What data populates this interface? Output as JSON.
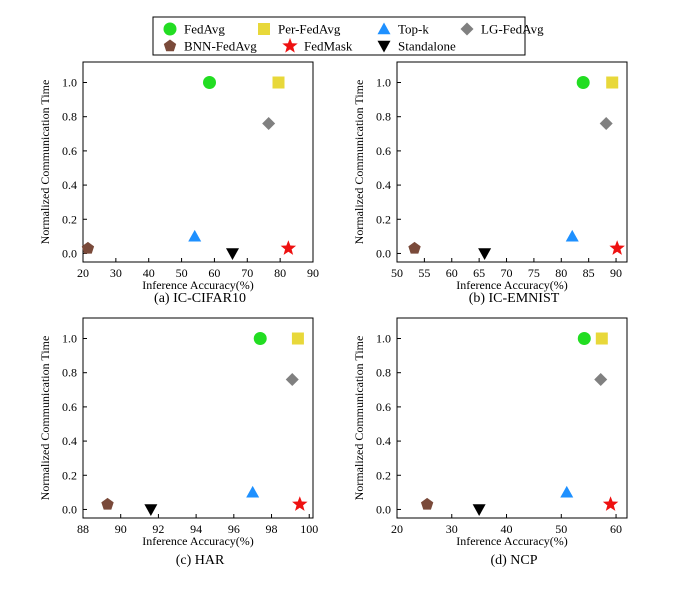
{
  "legend": [
    {
      "name": "FedAvg",
      "marker": "circle",
      "color": "#22dd22"
    },
    {
      "name": "Per-FedAvg",
      "marker": "square",
      "color": "#e8d83a"
    },
    {
      "name": "Top-k",
      "marker": "triangle-up",
      "color": "#1e90ff"
    },
    {
      "name": "LG-FedAvg",
      "marker": "diamond",
      "color": "#808080"
    },
    {
      "name": "BNN-FedAvg",
      "marker": "pentagon",
      "color": "#7a4a3a"
    },
    {
      "name": "FedMask",
      "marker": "star",
      "color": "#ee1111"
    },
    {
      "name": "Standalone",
      "marker": "triangle-down",
      "color": "#000000"
    }
  ],
  "chart_data": [
    {
      "type": "scatter",
      "caption": "(a) IC-CIFAR10",
      "xlabel": "Inference Accuracy(%)",
      "ylabel": "Normalized Communication Time",
      "xlim": [
        20,
        90
      ],
      "ylim": [
        -0.05,
        1.12
      ],
      "xticks": [
        20,
        30,
        40,
        50,
        60,
        70,
        80,
        90
      ],
      "yticks": [
        0.0,
        0.2,
        0.4,
        0.6,
        0.8,
        1.0
      ],
      "grid": false,
      "points": [
        {
          "series": "FedAvg",
          "x": 58.5,
          "y": 1.0
        },
        {
          "series": "Per-FedAvg",
          "x": 79.5,
          "y": 1.0
        },
        {
          "series": "Top-k",
          "x": 54,
          "y": 0.1
        },
        {
          "series": "LG-FedAvg",
          "x": 76.5,
          "y": 0.76
        },
        {
          "series": "BNN-FedAvg",
          "x": 21.5,
          "y": 0.03
        },
        {
          "series": "FedMask",
          "x": 82.5,
          "y": 0.03
        },
        {
          "series": "Standalone",
          "x": 65.5,
          "y": 0.0
        }
      ]
    },
    {
      "type": "scatter",
      "caption": "(b) IC-EMNIST",
      "xlabel": "Inference Accuracy(%)",
      "ylabel": "Normalized Communication Time",
      "xlim": [
        50,
        92
      ],
      "ylim": [
        -0.05,
        1.12
      ],
      "xticks": [
        50,
        55,
        60,
        65,
        70,
        75,
        80,
        85,
        90
      ],
      "yticks": [
        0.0,
        0.2,
        0.4,
        0.6,
        0.8,
        1.0
      ],
      "grid": false,
      "points": [
        {
          "series": "FedAvg",
          "x": 84,
          "y": 1.0
        },
        {
          "series": "Per-FedAvg",
          "x": 89.3,
          "y": 1.0
        },
        {
          "series": "Top-k",
          "x": 82,
          "y": 0.1
        },
        {
          "series": "LG-FedAvg",
          "x": 88.2,
          "y": 0.76
        },
        {
          "series": "BNN-FedAvg",
          "x": 53.2,
          "y": 0.03
        },
        {
          "series": "FedMask",
          "x": 90.2,
          "y": 0.03
        },
        {
          "series": "Standalone",
          "x": 66,
          "y": 0.0
        }
      ]
    },
    {
      "type": "scatter",
      "caption": "(c) HAR",
      "xlabel": "Inference Accuracy(%)",
      "ylabel": "Normalized Communication Time",
      "xlim": [
        88,
        100.2
      ],
      "ylim": [
        -0.05,
        1.12
      ],
      "xticks": [
        88,
        90,
        92,
        94,
        96,
        98,
        100
      ],
      "yticks": [
        0.0,
        0.2,
        0.4,
        0.6,
        0.8,
        1.0
      ],
      "grid": false,
      "points": [
        {
          "series": "FedAvg",
          "x": 97.4,
          "y": 1.0
        },
        {
          "series": "Per-FedAvg",
          "x": 99.4,
          "y": 1.0
        },
        {
          "series": "Top-k",
          "x": 97,
          "y": 0.1
        },
        {
          "series": "LG-FedAvg",
          "x": 99.1,
          "y": 0.76
        },
        {
          "series": "BNN-FedAvg",
          "x": 89.3,
          "y": 0.03
        },
        {
          "series": "FedMask",
          "x": 99.5,
          "y": 0.03
        },
        {
          "series": "Standalone",
          "x": 91.6,
          "y": 0.0
        }
      ]
    },
    {
      "type": "scatter",
      "caption": "(d) NCP",
      "xlabel": "Inference Accuracy(%)",
      "ylabel": "Normalized Communication Time",
      "xlim": [
        20,
        62
      ],
      "ylim": [
        -0.05,
        1.12
      ],
      "xticks": [
        20,
        30,
        40,
        50,
        60
      ],
      "yticks": [
        0.0,
        0.2,
        0.4,
        0.6,
        0.8,
        1.0
      ],
      "grid": false,
      "points": [
        {
          "series": "FedAvg",
          "x": 54.2,
          "y": 1.0
        },
        {
          "series": "Per-FedAvg",
          "x": 57.4,
          "y": 1.0
        },
        {
          "series": "Top-k",
          "x": 51,
          "y": 0.1
        },
        {
          "series": "LG-FedAvg",
          "x": 57.2,
          "y": 0.76
        },
        {
          "series": "BNN-FedAvg",
          "x": 25.5,
          "y": 0.03
        },
        {
          "series": "FedMask",
          "x": 59,
          "y": 0.03
        },
        {
          "series": "Standalone",
          "x": 35,
          "y": 0.0
        }
      ]
    }
  ]
}
